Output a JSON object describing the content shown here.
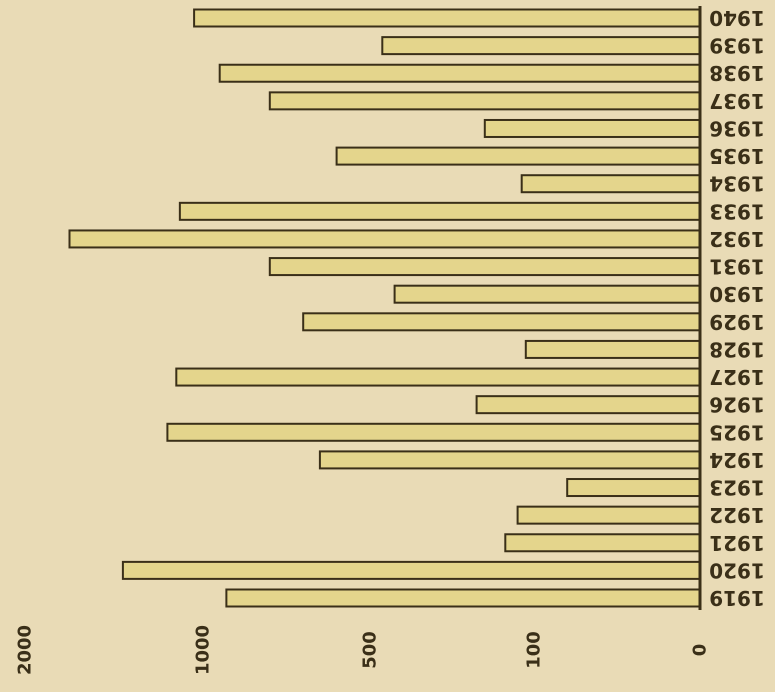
{
  "chart_data": {
    "type": "bar",
    "orientation": "horizontal",
    "rendered_rotated_180": true,
    "title": "",
    "xlabel": "",
    "ylabel": "",
    "scale": "nonlinear",
    "xticks": [
      {
        "label": "0",
        "value": 0
      },
      {
        "label": "100",
        "value": 100
      },
      {
        "label": "500",
        "value": 500
      },
      {
        "label": "1000",
        "value": 1000
      },
      {
        "label": "2000",
        "value": 2000
      }
    ],
    "xlim": [
      0,
      2000
    ],
    "categories": [
      "1919",
      "1920",
      "1921",
      "1922",
      "1923",
      "1924",
      "1925",
      "1926",
      "1927",
      "1928",
      "1929",
      "1930",
      "1931",
      "1932",
      "1933",
      "1934",
      "1935",
      "1936",
      "1937",
      "1938",
      "1939",
      "1940"
    ],
    "values": [
      930,
      1450,
      170,
      140,
      80,
      650,
      1200,
      240,
      1150,
      120,
      700,
      440,
      800,
      1750,
      1130,
      130,
      600,
      220,
      800,
      950,
      470,
      1050
    ],
    "grid": false,
    "legend": false
  },
  "colors": {
    "background": "#e9dbb6",
    "bar_fill": "#e4d58c",
    "bar_stroke": "#3a2f18",
    "text": "#3a2f18"
  }
}
